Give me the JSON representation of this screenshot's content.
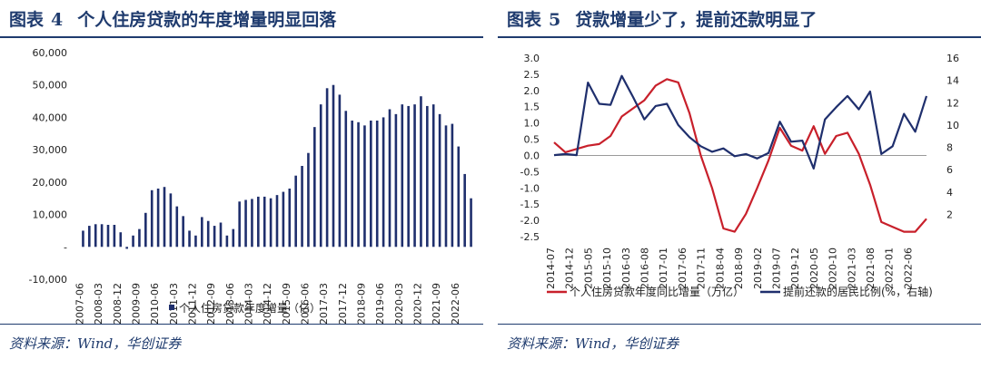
{
  "left": {
    "title_label": "图表",
    "title_num": "4",
    "title_text": "个人住房贷款的年度增量明显回落",
    "source": "资料来源：Wind，华创证券"
  },
  "right": {
    "title_label": "图表",
    "title_num": "5",
    "title_text": "贷款增量少了，提前还款明显了",
    "source": "资料来源：Wind，华创证券"
  },
  "colors": {
    "accent": "#1f3b6e",
    "bars": "#1f2f6d",
    "red_line": "#c8202b",
    "blue_line": "#1f2f6d"
  },
  "chart_data": [
    {
      "type": "bar",
      "ylim": [
        -10000,
        60000
      ],
      "y_ticks": [
        -10000,
        0,
        10000,
        20000,
        30000,
        40000,
        50000,
        60000
      ],
      "y_tick_labels": [
        "-10,000",
        "-",
        "10,000",
        "20,000",
        "30,000",
        "40,000",
        "50,000",
        "60,000"
      ],
      "x_tick_labels": [
        "2007-06",
        "2008-03",
        "2008-12",
        "2009-09",
        "2010-06",
        "2011-03",
        "2011-12",
        "2012-09",
        "2013-06",
        "2014-03",
        "2014-12",
        "2015-09",
        "2016-06",
        "2017-03",
        "2017-12",
        "2018-09",
        "2019-06",
        "2020-03",
        "2020-12",
        "2021-09",
        "2022-06"
      ],
      "series": [
        {
          "name": "个人住房贷款年度增量（亿）",
          "x": [
            "2007-06",
            "2007-09",
            "2007-12",
            "2008-03",
            "2008-06",
            "2008-09",
            "2008-12",
            "2009-03",
            "2009-06",
            "2009-09",
            "2009-12",
            "2010-03",
            "2010-06",
            "2010-09",
            "2010-12",
            "2011-03",
            "2011-06",
            "2011-09",
            "2011-12",
            "2012-03",
            "2012-06",
            "2012-09",
            "2012-12",
            "2013-03",
            "2013-06",
            "2013-09",
            "2013-12",
            "2014-03",
            "2014-06",
            "2014-09",
            "2014-12",
            "2015-03",
            "2015-06",
            "2015-09",
            "2015-12",
            "2016-03",
            "2016-06",
            "2016-09",
            "2016-12",
            "2017-03",
            "2017-06",
            "2017-09",
            "2017-12",
            "2018-03",
            "2018-06",
            "2018-09",
            "2018-12",
            "2019-03",
            "2019-06",
            "2019-09",
            "2019-12",
            "2020-03",
            "2020-06",
            "2020-09",
            "2020-12",
            "2021-03",
            "2021-06",
            "2021-09",
            "2021-12",
            "2022-03",
            "2022-06",
            "2022-09",
            "2022-12"
          ],
          "values": [
            5000,
            6500,
            7000,
            7000,
            6800,
            6800,
            4500,
            -600,
            3500,
            5500,
            10500,
            17500,
            18000,
            18500,
            16500,
            12500,
            9500,
            5000,
            3500,
            9200,
            8000,
            6500,
            7500,
            3500,
            5500,
            14000,
            14500,
            14800,
            15500,
            15500,
            15000,
            16000,
            17000,
            18000,
            22000,
            25000,
            29000,
            37000,
            44000,
            49000,
            50000,
            47000,
            42000,
            39000,
            38500,
            37500,
            39000,
            39000,
            40000,
            42500,
            41000,
            44000,
            43500,
            44000,
            46500,
            43500,
            44000,
            41000,
            37500,
            38000,
            31000,
            22500,
            15000
          ]
        }
      ]
    },
    {
      "type": "line",
      "ylim": [
        -2.5,
        3.0
      ],
      "y_ticks": [
        -2.5,
        -2.0,
        -1.5,
        -1.0,
        -0.5,
        0.0,
        0.5,
        1.0,
        1.5,
        2.0,
        2.5,
        3.0
      ],
      "y_tick_labels": [
        "-2.5",
        "-2.0",
        "-1.5",
        "-1.0",
        "-0.5",
        "0.0",
        "0.5",
        "1.0",
        "1.5",
        "2.0",
        "2.5",
        "3.0"
      ],
      "y2lim": [
        0,
        16
      ],
      "y2_ticks": [
        2,
        4,
        6,
        8,
        10,
        12,
        14,
        16
      ],
      "y2_tick_labels": [
        "2",
        "4",
        "6",
        "8",
        "10",
        "12",
        "14",
        "16"
      ],
      "x_tick_labels": [
        "2014-07",
        "2014-12",
        "2015-05",
        "2015-10",
        "2016-03",
        "2016-08",
        "2017-01",
        "2017-06",
        "2017-11",
        "2018-04",
        "2018-09",
        "2019-02",
        "2019-07",
        "2019-12",
        "2020-05",
        "2020-10",
        "2021-03",
        "2021-08",
        "2022-01",
        "2022-06"
      ],
      "series": [
        {
          "name": "个人住房贷款年度同比增量（万亿）",
          "axis": "left",
          "x": [
            "2014-07",
            "2014-10",
            "2015-01",
            "2015-04",
            "2015-07",
            "2015-10",
            "2016-01",
            "2016-04",
            "2016-07",
            "2016-10",
            "2017-01",
            "2017-04",
            "2017-07",
            "2017-10",
            "2018-01",
            "2018-04",
            "2018-07",
            "2018-10",
            "2019-01",
            "2019-04",
            "2019-07",
            "2019-10",
            "2020-01",
            "2020-04",
            "2020-07",
            "2020-10",
            "2021-01",
            "2021-04",
            "2021-07",
            "2021-10",
            "2022-01",
            "2022-04",
            "2022-07",
            "2022-10"
          ],
          "values": [
            0.4,
            0.1,
            0.2,
            0.3,
            0.35,
            0.6,
            1.2,
            1.45,
            1.7,
            2.15,
            2.35,
            2.25,
            1.3,
            0.0,
            -1.0,
            -2.25,
            -2.35,
            -1.8,
            -1.0,
            -0.15,
            0.85,
            0.3,
            0.15,
            0.9,
            0.05,
            0.6,
            0.7,
            0.05,
            -0.9,
            -2.05,
            -2.2,
            -2.35,
            -2.35,
            -1.95
          ]
        },
        {
          "name": "提前还款的居民比例(%，右轴)",
          "axis": "right",
          "x": [
            "2014-07",
            "2014-10",
            "2015-01",
            "2015-04",
            "2015-07",
            "2015-10",
            "2016-01",
            "2016-04",
            "2016-07",
            "2016-10",
            "2017-01",
            "2017-04",
            "2017-07",
            "2017-10",
            "2018-01",
            "2018-04",
            "2018-07",
            "2018-10",
            "2019-01",
            "2019-04",
            "2019-07",
            "2019-10",
            "2020-01",
            "2020-04",
            "2020-07",
            "2020-10",
            "2021-01",
            "2021-04",
            "2021-07",
            "2021-10",
            "2022-01",
            "2022-04",
            "2022-07",
            "2022-10"
          ],
          "values": [
            7.3,
            7.4,
            7.3,
            13.8,
            11.9,
            11.8,
            14.4,
            12.5,
            10.5,
            11.7,
            11.9,
            10.0,
            8.9,
            8.1,
            7.6,
            7.9,
            7.2,
            7.4,
            7.0,
            7.5,
            10.3,
            8.5,
            8.6,
            6.1,
            10.5,
            11.6,
            12.6,
            11.4,
            13.0,
            7.4,
            8.1,
            11.0,
            9.4,
            12.6
          ]
        }
      ]
    }
  ]
}
